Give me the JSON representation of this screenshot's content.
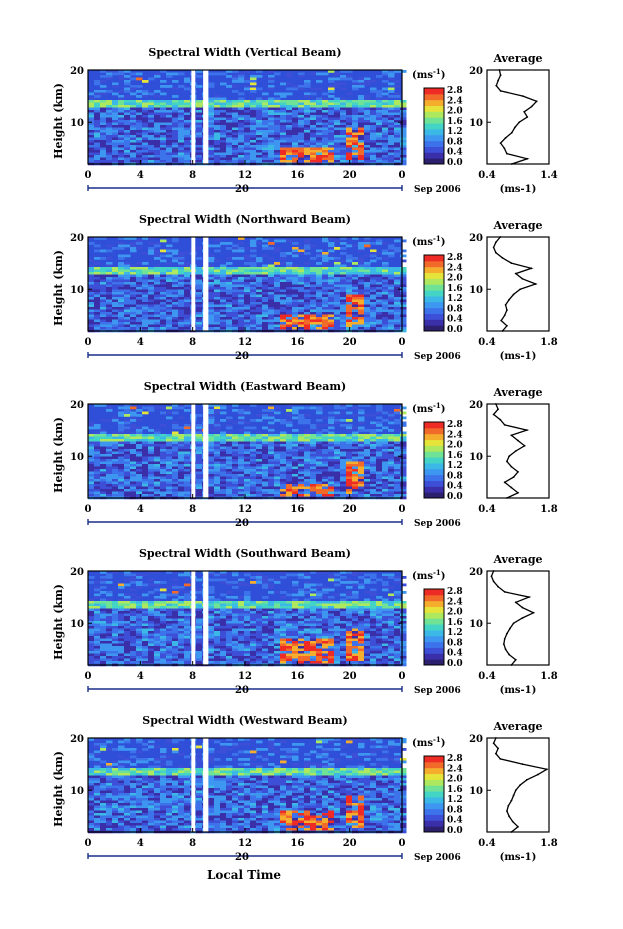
{
  "figure": {
    "xlabel": "Local Time",
    "date_label": "Sep 2006",
    "day_label": "20",
    "unit_label": "(ms",
    "unit_sup": "-1",
    "unit_close": ")",
    "avg_title": "Average"
  },
  "colors": {
    "scale": [
      "#2b1f6e",
      "#3a2fa8",
      "#3c4fd6",
      "#3d73ea",
      "#3d96f0",
      "#3cb8e6",
      "#44d4c6",
      "#6fe296",
      "#aee85e",
      "#e6e33a",
      "#f5ad2e",
      "#f26a2a",
      "#ee2b24"
    ],
    "background": "#2f4fd8",
    "hot": "#ee2b24"
  },
  "chart_data": [
    {
      "type": "heatmap",
      "title": "Spectral Width (Vertical Beam)",
      "ylabel": "Height (km)",
      "x_ticks": [
        "0",
        "4",
        "8",
        "12",
        "16",
        "20",
        "0"
      ],
      "y_ticks": [
        "20",
        "10"
      ],
      "xlim": [
        0,
        24
      ],
      "ylim": [
        2,
        20
      ],
      "colorbar_ticks": [
        "2.8",
        "2.4",
        "2.0",
        "1.6",
        "1.2",
        "0.8",
        "0.4",
        "0.0"
      ],
      "data_gaps_hours": [
        [
          7.9,
          8.2
        ],
        [
          8.8,
          9.2
        ]
      ],
      "intense_regions": [
        {
          "t0": 14.5,
          "t1": 18.5,
          "h0": 2.5,
          "h1": 5.5
        },
        {
          "t0": 19.5,
          "t1": 21,
          "h0": 3,
          "h1": 9
        }
      ],
      "profile": {
        "xlabel": "(ms-1)",
        "x_ticks": [
          "0.4",
          "1.4"
        ],
        "xlim": [
          0.4,
          1.4
        ],
        "y_ticks": [
          "20",
          "10"
        ],
        "ylim": [
          2,
          20
        ],
        "heights": [
          2,
          3,
          4,
          5,
          6,
          7,
          8,
          9,
          10,
          11,
          12,
          13,
          14,
          15,
          16,
          17,
          18,
          19,
          20
        ],
        "values": [
          0.8,
          1.05,
          0.72,
          0.68,
          0.62,
          0.7,
          0.8,
          0.85,
          0.92,
          1.05,
          1.0,
          1.12,
          1.2,
          0.98,
          0.62,
          0.55,
          0.58,
          0.62,
          0.6
        ]
      }
    },
    {
      "type": "heatmap",
      "title": "Spectral Width (Northward Beam)",
      "ylabel": "Height (km)",
      "x_ticks": [
        "0",
        "4",
        "8",
        "12",
        "16",
        "20",
        "0"
      ],
      "y_ticks": [
        "20",
        "10"
      ],
      "xlim": [
        0,
        24
      ],
      "ylim": [
        2,
        20
      ],
      "colorbar_ticks": [
        "2.8",
        "2.4",
        "2.0",
        "1.6",
        "1.2",
        "0.8",
        "0.4",
        "0.0"
      ],
      "data_gaps_hours": [
        [
          7.9,
          8.2
        ],
        [
          8.8,
          9.2
        ]
      ],
      "intense_regions": [
        {
          "t0": 14.5,
          "t1": 18.5,
          "h0": 2.5,
          "h1": 5.5
        },
        {
          "t0": 19.5,
          "t1": 21,
          "h0": 3,
          "h1": 9
        }
      ],
      "profile": {
        "xlabel": "(ms-1)",
        "x_ticks": [
          "0.4",
          "1.8"
        ],
        "xlim": [
          0.4,
          1.8
        ],
        "y_ticks": [
          "20",
          "10"
        ],
        "ylim": [
          2,
          20
        ],
        "heights": [
          2,
          3,
          4,
          5,
          6,
          7,
          8,
          9,
          10,
          11,
          12,
          13,
          14,
          15,
          16,
          17,
          18,
          19,
          20
        ],
        "values": [
          0.75,
          0.85,
          0.72,
          0.8,
          0.85,
          0.82,
          0.9,
          1.0,
          1.15,
          1.5,
          1.2,
          1.05,
          1.4,
          0.95,
          0.75,
          0.6,
          0.55,
          0.6,
          0.7
        ]
      }
    },
    {
      "type": "heatmap",
      "title": "Spectral Width (Eastward Beam)",
      "ylabel": "Height (km)",
      "x_ticks": [
        "0",
        "4",
        "8",
        "12",
        "16",
        "20",
        "0"
      ],
      "y_ticks": [
        "20",
        "10"
      ],
      "xlim": [
        0,
        24
      ],
      "ylim": [
        2,
        20
      ],
      "colorbar_ticks": [
        "2.8",
        "2.4",
        "2.0",
        "1.6",
        "1.2",
        "0.8",
        "0.4",
        "0.0"
      ],
      "data_gaps_hours": [
        [
          7.9,
          8.2
        ],
        [
          8.8,
          9.2
        ]
      ],
      "intense_regions": [
        {
          "t0": 14.5,
          "t1": 18.5,
          "h0": 2.5,
          "h1": 5.0
        },
        {
          "t0": 19.5,
          "t1": 21,
          "h0": 3,
          "h1": 9
        }
      ],
      "profile": {
        "xlabel": "",
        "x_ticks": [
          "0.4",
          "1.8"
        ],
        "xlim": [
          0.4,
          1.8
        ],
        "y_ticks": [
          "20",
          "10"
        ],
        "ylim": [
          2,
          20
        ],
        "heights": [
          2,
          3,
          4,
          5,
          6,
          7,
          8,
          9,
          10,
          11,
          12,
          13,
          14,
          15,
          16,
          17,
          18,
          19,
          20
        ],
        "values": [
          0.85,
          1.1,
          0.95,
          0.8,
          1.0,
          1.1,
          0.95,
          0.85,
          0.9,
          1.05,
          1.25,
          1.1,
          0.95,
          1.3,
          0.8,
          0.7,
          0.55,
          0.65,
          0.6
        ]
      }
    },
    {
      "type": "heatmap",
      "title": "Spectral Width (Southward Beam)",
      "ylabel": "Height (km)",
      "x_ticks": [
        "0",
        "4",
        "8",
        "12",
        "16",
        "20",
        "0"
      ],
      "y_ticks": [
        "20",
        "10"
      ],
      "xlim": [
        0,
        24
      ],
      "ylim": [
        2,
        20
      ],
      "colorbar_ticks": [
        "2.8",
        "2.4",
        "2.0",
        "1.6",
        "1.2",
        "0.8",
        "0.4",
        "0.0"
      ],
      "data_gaps_hours": [
        [
          7.9,
          8.2
        ],
        [
          8.8,
          9.2
        ]
      ],
      "intense_regions": [
        {
          "t0": 14.5,
          "t1": 18.5,
          "h0": 2.5,
          "h1": 7.5
        },
        {
          "t0": 19.5,
          "t1": 21,
          "h0": 3,
          "h1": 9
        }
      ],
      "profile": {
        "xlabel": "(ms-1)",
        "x_ticks": [
          "0.4",
          "1.8"
        ],
        "xlim": [
          0.4,
          1.8
        ],
        "y_ticks": [
          "20",
          "10"
        ],
        "ylim": [
          2,
          20
        ],
        "heights": [
          2,
          3,
          4,
          5,
          6,
          7,
          8,
          9,
          10,
          11,
          12,
          13,
          14,
          15,
          16,
          17,
          18,
          19,
          20
        ],
        "values": [
          0.95,
          1.05,
          0.9,
          0.82,
          0.78,
          0.8,
          0.85,
          0.92,
          1.0,
          1.2,
          1.45,
          1.2,
          1.05,
          1.35,
          0.8,
          0.65,
          0.55,
          0.5,
          0.55
        ]
      }
    },
    {
      "type": "heatmap",
      "title": "Spectral Width (Westward Beam)",
      "ylabel": "Height (km)",
      "x_ticks": [
        "0",
        "4",
        "8",
        "12",
        "16",
        "20",
        "0"
      ],
      "y_ticks": [
        "20",
        "10"
      ],
      "xlim": [
        0,
        24
      ],
      "ylim": [
        2,
        20
      ],
      "colorbar_ticks": [
        "2.8",
        "2.4",
        "2.0",
        "1.6",
        "1.2",
        "0.8",
        "0.4",
        "0.0"
      ],
      "data_gaps_hours": [
        [
          7.9,
          8.2
        ],
        [
          8.8,
          9.2
        ]
      ],
      "intense_regions": [
        {
          "t0": 14.5,
          "t1": 18.5,
          "h0": 2.5,
          "h1": 6.5
        },
        {
          "t0": 19.5,
          "t1": 21,
          "h0": 3,
          "h1": 9
        }
      ],
      "profile": {
        "xlabel": "(ms-1)",
        "x_ticks": [
          "0.4",
          "1.8"
        ],
        "xlim": [
          0.4,
          1.8
        ],
        "y_ticks": [
          "20",
          "10"
        ],
        "ylim": [
          2,
          20
        ],
        "heights": [
          2,
          3,
          4,
          5,
          6,
          7,
          8,
          9,
          10,
          11,
          12,
          13,
          14,
          15,
          16,
          17,
          18,
          19,
          20
        ],
        "values": [
          0.95,
          1.1,
          0.98,
          0.9,
          0.85,
          0.88,
          0.95,
          1.0,
          1.05,
          1.15,
          1.3,
          1.55,
          1.75,
          1.2,
          0.7,
          0.6,
          0.65,
          0.55,
          0.6
        ]
      }
    }
  ]
}
